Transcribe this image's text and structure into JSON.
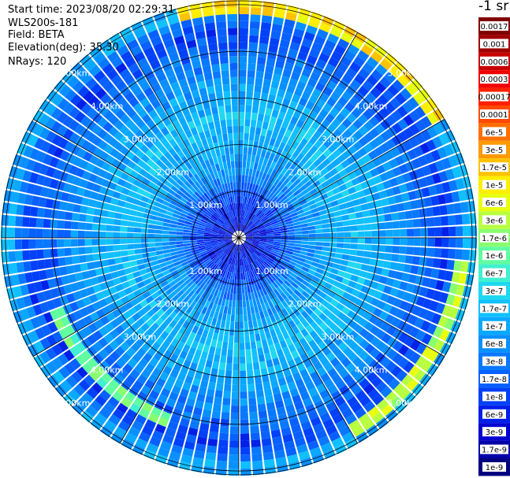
{
  "info": {
    "start_time": "Start time: 2023/08/20 02:29:31",
    "device": "WLS200s-181",
    "field": "Field: BETA",
    "elevation": "Elevation(deg): 35.30",
    "nrays": "NRays: 120"
  },
  "chart_data": {
    "type": "heatmap",
    "projection": "polar",
    "field": "BETA",
    "unit": "-1 sr",
    "n_rays": 120,
    "elevation_deg": 35.3,
    "range_rings_km": [
      1.0,
      2.0,
      3.0,
      4.0,
      5.0
    ],
    "max_range_km": 5.1,
    "ring_labels": [
      "1.00km",
      "2.00km",
      "3.00km",
      "4.00km",
      "5.00km"
    ],
    "spokes_deg": [
      0,
      30,
      60,
      90,
      120,
      150,
      180,
      210,
      240,
      270,
      300,
      330
    ],
    "colorbar": {
      "labels": [
        "0.0017",
        "0.001",
        "0.0006",
        "0.0003",
        "0.00017",
        "0.0001",
        "6e-5",
        "3e-5",
        "1.7e-5",
        "1e-5",
        "6e-6",
        "3e-6",
        "1.7e-6",
        "1e-6",
        "6e-7",
        "3e-7",
        "1.7e-7",
        "1e-7",
        "6e-8",
        "3e-8",
        "1.7e-8",
        "1e-8",
        "6e-9",
        "3e-9",
        "1.7e-9",
        "1e-9"
      ],
      "colors": [
        "#7f0000",
        "#a00000",
        "#c80000",
        "#f00000",
        "#ff2000",
        "#ff4a00",
        "#ff7000",
        "#ff9a00",
        "#ffc200",
        "#ffee00",
        "#e8ff10",
        "#b8ff40",
        "#88ff70",
        "#60ffa0",
        "#40f0d0",
        "#20d8f0",
        "#10c0ff",
        "#0aa8ff",
        "#0890ff",
        "#0878ff",
        "#0860ff",
        "#0040f8",
        "#0020e8",
        "#0000d0",
        "#0000a8",
        "#000080"
      ]
    },
    "band_profile": [
      {
        "r_km": 0.0,
        "value": "3e-9"
      },
      {
        "r_km": 0.9,
        "value": "1e-8"
      },
      {
        "r_km": 1.4,
        "value": "6e-8"
      },
      {
        "r_km": 2.5,
        "value": "1.7e-7"
      },
      {
        "r_km": 3.5,
        "value": "6e-8"
      },
      {
        "r_km": 4.5,
        "value": "1e-8"
      },
      {
        "r_km": 4.9,
        "value": "1e-7"
      }
    ],
    "highlights": [
      {
        "from_deg": 345,
        "to_deg": 60,
        "r_km": 4.9,
        "value": "1e-5"
      },
      {
        "from_deg": 200,
        "to_deg": 250,
        "r_km": 4.2,
        "value": "1e-6"
      },
      {
        "from_deg": 95,
        "to_deg": 150,
        "r_km": 4.8,
        "value": "3e-6"
      }
    ]
  }
}
